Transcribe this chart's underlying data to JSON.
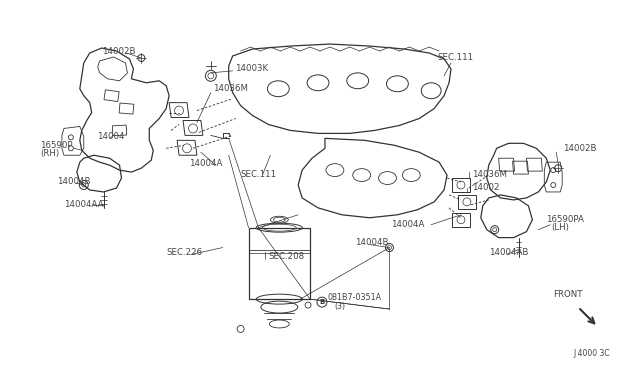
{
  "bg_color": "#ffffff",
  "line_color": "#333333",
  "label_color": "#444444",
  "fig_id": "J 4000 3C",
  "components": {
    "left_manifold_label": "14002B",
    "center_top_label": "14003K",
    "center_gasket_label": "14036M",
    "rh_label": "16590P\n(RH)",
    "part_14004": "14004",
    "part_14004B_l": "14004B",
    "part_14004AA": "14004AA",
    "part_14004A_l": "14004A",
    "sec111_l": "SEC.111",
    "sec111_r": "SEC.111",
    "part_14002B_r": "14002B",
    "part_14036M_r": "14036M",
    "part_14002_r": "14002",
    "part_14004A_r": "14004A",
    "sec226": "SEC.226",
    "sec208": "SEC.208",
    "part_14004B_r": "14004B",
    "part_14004AB": "14004AB",
    "lh_label": "16590PA\n(LH)",
    "front": "FRONT",
    "bottom_note1": "B  081B7-0351A",
    "bottom_note2": "(3)",
    "fig_note": "J 4000 3C"
  }
}
